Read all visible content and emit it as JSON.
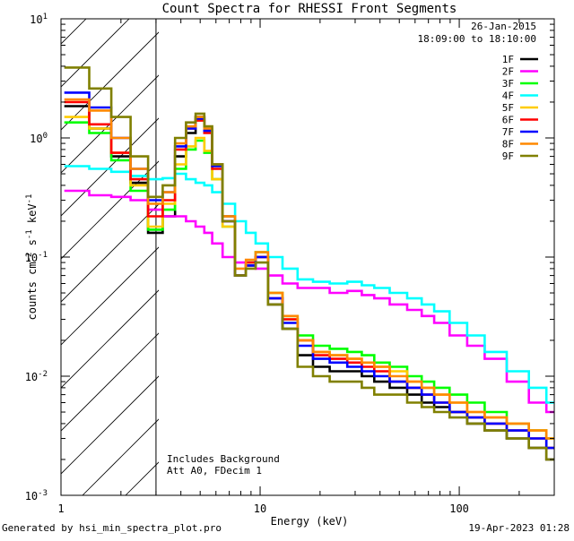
{
  "footer": {
    "generated_by": "Generated by hsi_min_spectra_plot.pro",
    "timestamp": "19-Apr-2023 01:28"
  },
  "chart_data": {
    "type": "line",
    "title": "Count Spectra for RHESSI Front Segments",
    "xlabel": "Energy (keV)",
    "ylabel": "counts cm-2 s-1 keV-1",
    "x_scale": "log",
    "y_scale": "log",
    "xlim": [
      1,
      300
    ],
    "ylim": [
      0.001,
      10
    ],
    "x_tick_labels": [
      {
        "value": 1,
        "label": "1"
      },
      {
        "value": 10,
        "label": "10"
      },
      {
        "value": 100,
        "label": "100"
      }
    ],
    "y_tick_labels": [
      {
        "value": 10,
        "base": "10",
        "exp": "1"
      },
      {
        "value": 1,
        "base": "10",
        "exp": "0"
      },
      {
        "value": 0.1,
        "base": "10",
        "exp": "-1"
      },
      {
        "value": 0.01,
        "base": "10",
        "exp": "-2"
      },
      {
        "value": 0.001,
        "base": "10",
        "exp": "-3"
      }
    ],
    "date": "26-Jan-2015",
    "time_range": "18:09:00 to 18:10:00",
    "annotations": [
      "Includes Background",
      "Att A0, FDecim 1"
    ],
    "excluded_region_keV": [
      1,
      3
    ],
    "energy_keV": [
      1.2,
      1.6,
      2.0,
      2.5,
      3.0,
      3.5,
      4.0,
      4.5,
      5.0,
      5.5,
      6.0,
      7.0,
      8.0,
      9.0,
      10.0,
      12.0,
      14.0,
      17.0,
      20.0,
      25.0,
      30.0,
      35.0,
      40.0,
      50.0,
      60.0,
      70.0,
      80.0,
      100.0,
      120.0,
      150.0,
      200.0,
      250.0,
      300.0
    ],
    "series": [
      {
        "name": "1F",
        "color": "#000000",
        "values": [
          1.85,
          1.2,
          0.7,
          0.42,
          0.16,
          0.22,
          0.7,
          1.1,
          1.5,
          1.15,
          0.6,
          0.22,
          0.07,
          0.085,
          0.1,
          0.04,
          0.025,
          0.015,
          0.012,
          0.011,
          0.011,
          0.01,
          0.009,
          0.008,
          0.007,
          0.006,
          0.0055,
          0.005,
          0.004,
          0.0035,
          0.003,
          0.0025,
          0.002
        ]
      },
      {
        "name": "2F",
        "color": "#ff00ff",
        "values": [
          0.36,
          0.33,
          0.32,
          0.3,
          0.25,
          0.22,
          0.22,
          0.2,
          0.18,
          0.16,
          0.13,
          0.1,
          0.09,
          0.085,
          0.08,
          0.07,
          0.06,
          0.055,
          0.055,
          0.05,
          0.052,
          0.048,
          0.045,
          0.04,
          0.036,
          0.032,
          0.028,
          0.022,
          0.018,
          0.014,
          0.009,
          0.006,
          0.005
        ]
      },
      {
        "name": "3F",
        "color": "#00ff00",
        "values": [
          1.35,
          1.1,
          0.65,
          0.36,
          0.17,
          0.25,
          0.55,
          0.8,
          0.95,
          0.75,
          0.45,
          0.18,
          0.07,
          0.09,
          0.11,
          0.05,
          0.032,
          0.022,
          0.018,
          0.017,
          0.016,
          0.015,
          0.013,
          0.012,
          0.01,
          0.009,
          0.008,
          0.007,
          0.006,
          0.005,
          0.004,
          0.0035,
          0.003
        ]
      },
      {
        "name": "4F",
        "color": "#00ffff",
        "values": [
          0.58,
          0.55,
          0.52,
          0.48,
          0.45,
          0.46,
          0.5,
          0.45,
          0.42,
          0.4,
          0.35,
          0.28,
          0.2,
          0.16,
          0.13,
          0.1,
          0.08,
          0.065,
          0.062,
          0.06,
          0.062,
          0.058,
          0.055,
          0.05,
          0.045,
          0.04,
          0.035,
          0.028,
          0.022,
          0.016,
          0.011,
          0.008,
          0.006
        ]
      },
      {
        "name": "5F",
        "color": "#ffcc00",
        "values": [
          1.5,
          1.2,
          0.75,
          0.4,
          0.18,
          0.28,
          0.6,
          0.85,
          1.0,
          0.78,
          0.45,
          0.18,
          0.07,
          0.085,
          0.1,
          0.05,
          0.03,
          0.02,
          0.016,
          0.015,
          0.014,
          0.013,
          0.012,
          0.011,
          0.009,
          0.008,
          0.007,
          0.006,
          0.005,
          0.0045,
          0.004,
          0.0035,
          0.003
        ]
      },
      {
        "name": "6F",
        "color": "#ff0000",
        "values": [
          2.0,
          1.3,
          0.75,
          0.45,
          0.22,
          0.3,
          0.8,
          1.2,
          1.4,
          1.1,
          0.55,
          0.2,
          0.07,
          0.09,
          0.1,
          0.045,
          0.03,
          0.02,
          0.015,
          0.014,
          0.013,
          0.012,
          0.011,
          0.009,
          0.008,
          0.007,
          0.006,
          0.005,
          0.0045,
          0.004,
          0.0035,
          0.003,
          0.0025
        ]
      },
      {
        "name": "7F",
        "color": "#0000ff",
        "values": [
          2.4,
          1.8,
          1.0,
          0.55,
          0.3,
          0.35,
          0.85,
          1.2,
          1.45,
          1.15,
          0.58,
          0.2,
          0.07,
          0.085,
          0.1,
          0.045,
          0.028,
          0.018,
          0.014,
          0.013,
          0.012,
          0.011,
          0.01,
          0.009,
          0.008,
          0.007,
          0.006,
          0.005,
          0.0045,
          0.004,
          0.0035,
          0.003,
          0.0025
        ]
      },
      {
        "name": "8F",
        "color": "#ff8800",
        "values": [
          2.1,
          1.7,
          1.0,
          0.55,
          0.28,
          0.35,
          0.9,
          1.25,
          1.5,
          1.2,
          0.6,
          0.22,
          0.08,
          0.095,
          0.11,
          0.05,
          0.032,
          0.02,
          0.016,
          0.015,
          0.014,
          0.013,
          0.012,
          0.01,
          0.009,
          0.008,
          0.007,
          0.006,
          0.005,
          0.0045,
          0.004,
          0.0035,
          0.003
        ]
      },
      {
        "name": "9F",
        "color": "#808000",
        "values": [
          3.9,
          2.6,
          1.5,
          0.7,
          0.32,
          0.4,
          1.0,
          1.35,
          1.6,
          1.25,
          0.6,
          0.2,
          0.07,
          0.08,
          0.09,
          0.04,
          0.025,
          0.012,
          0.01,
          0.009,
          0.009,
          0.008,
          0.007,
          0.007,
          0.006,
          0.0055,
          0.005,
          0.0045,
          0.004,
          0.0035,
          0.003,
          0.0025,
          0.002
        ]
      }
    ]
  }
}
